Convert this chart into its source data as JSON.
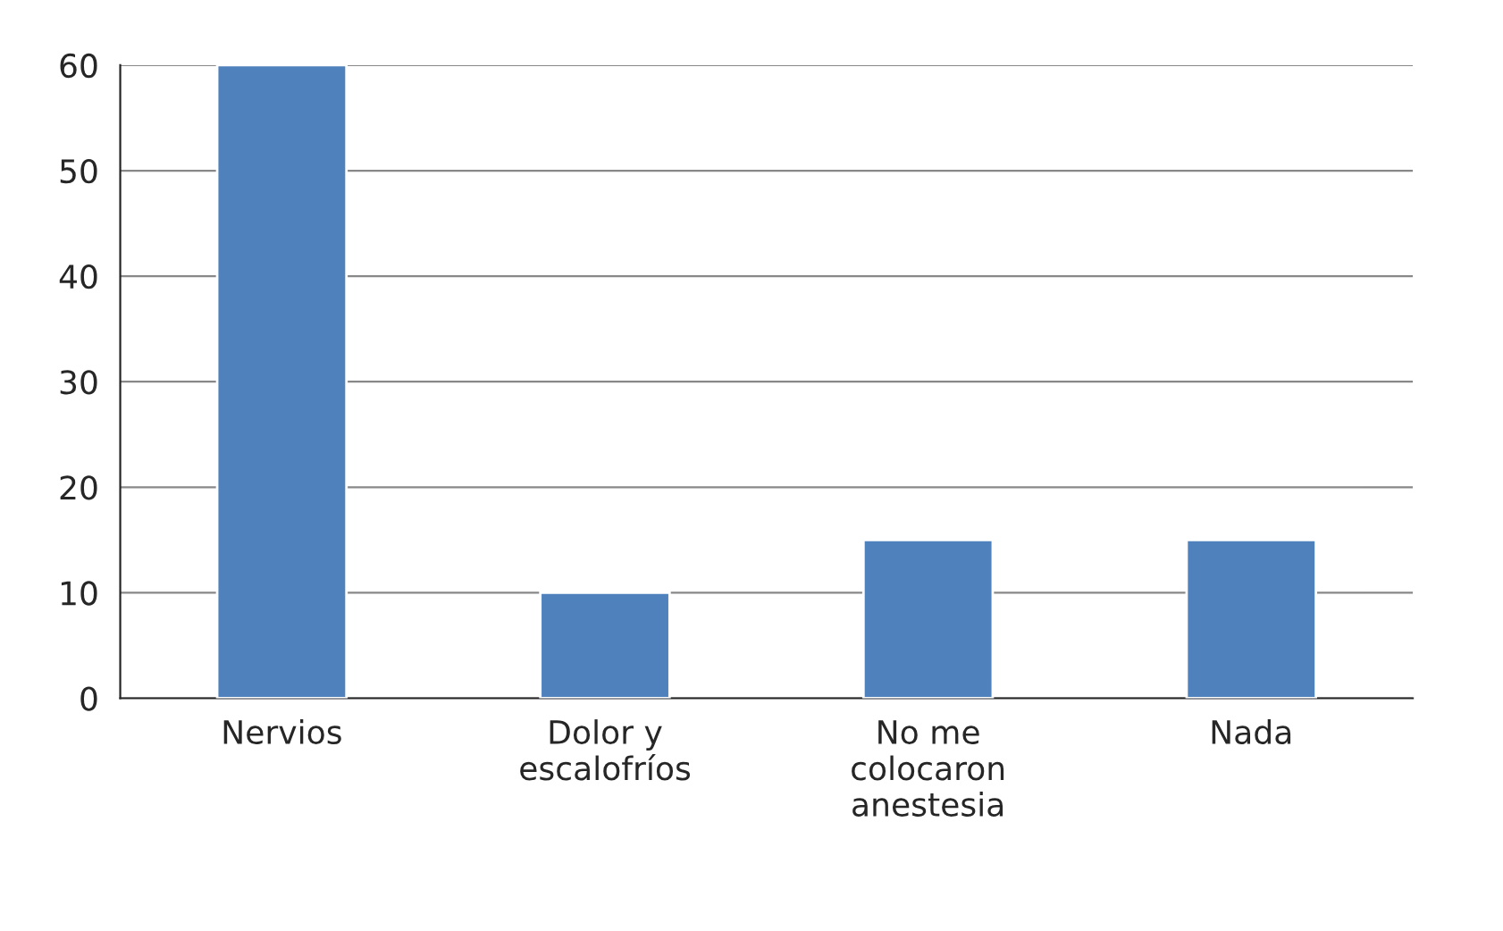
{
  "chart_data": {
    "type": "bar",
    "categories": [
      "Nervios",
      "Dolor y\nescalofríos",
      "No me\ncolocaron\nanestesia",
      "Nada"
    ],
    "values": [
      60,
      10,
      15,
      15
    ],
    "color": "#4f81bd",
    "ylim": [
      0,
      60
    ],
    "yticks": [
      0,
      10,
      20,
      30,
      40,
      50,
      60
    ],
    "grid": "y",
    "legend": false
  }
}
